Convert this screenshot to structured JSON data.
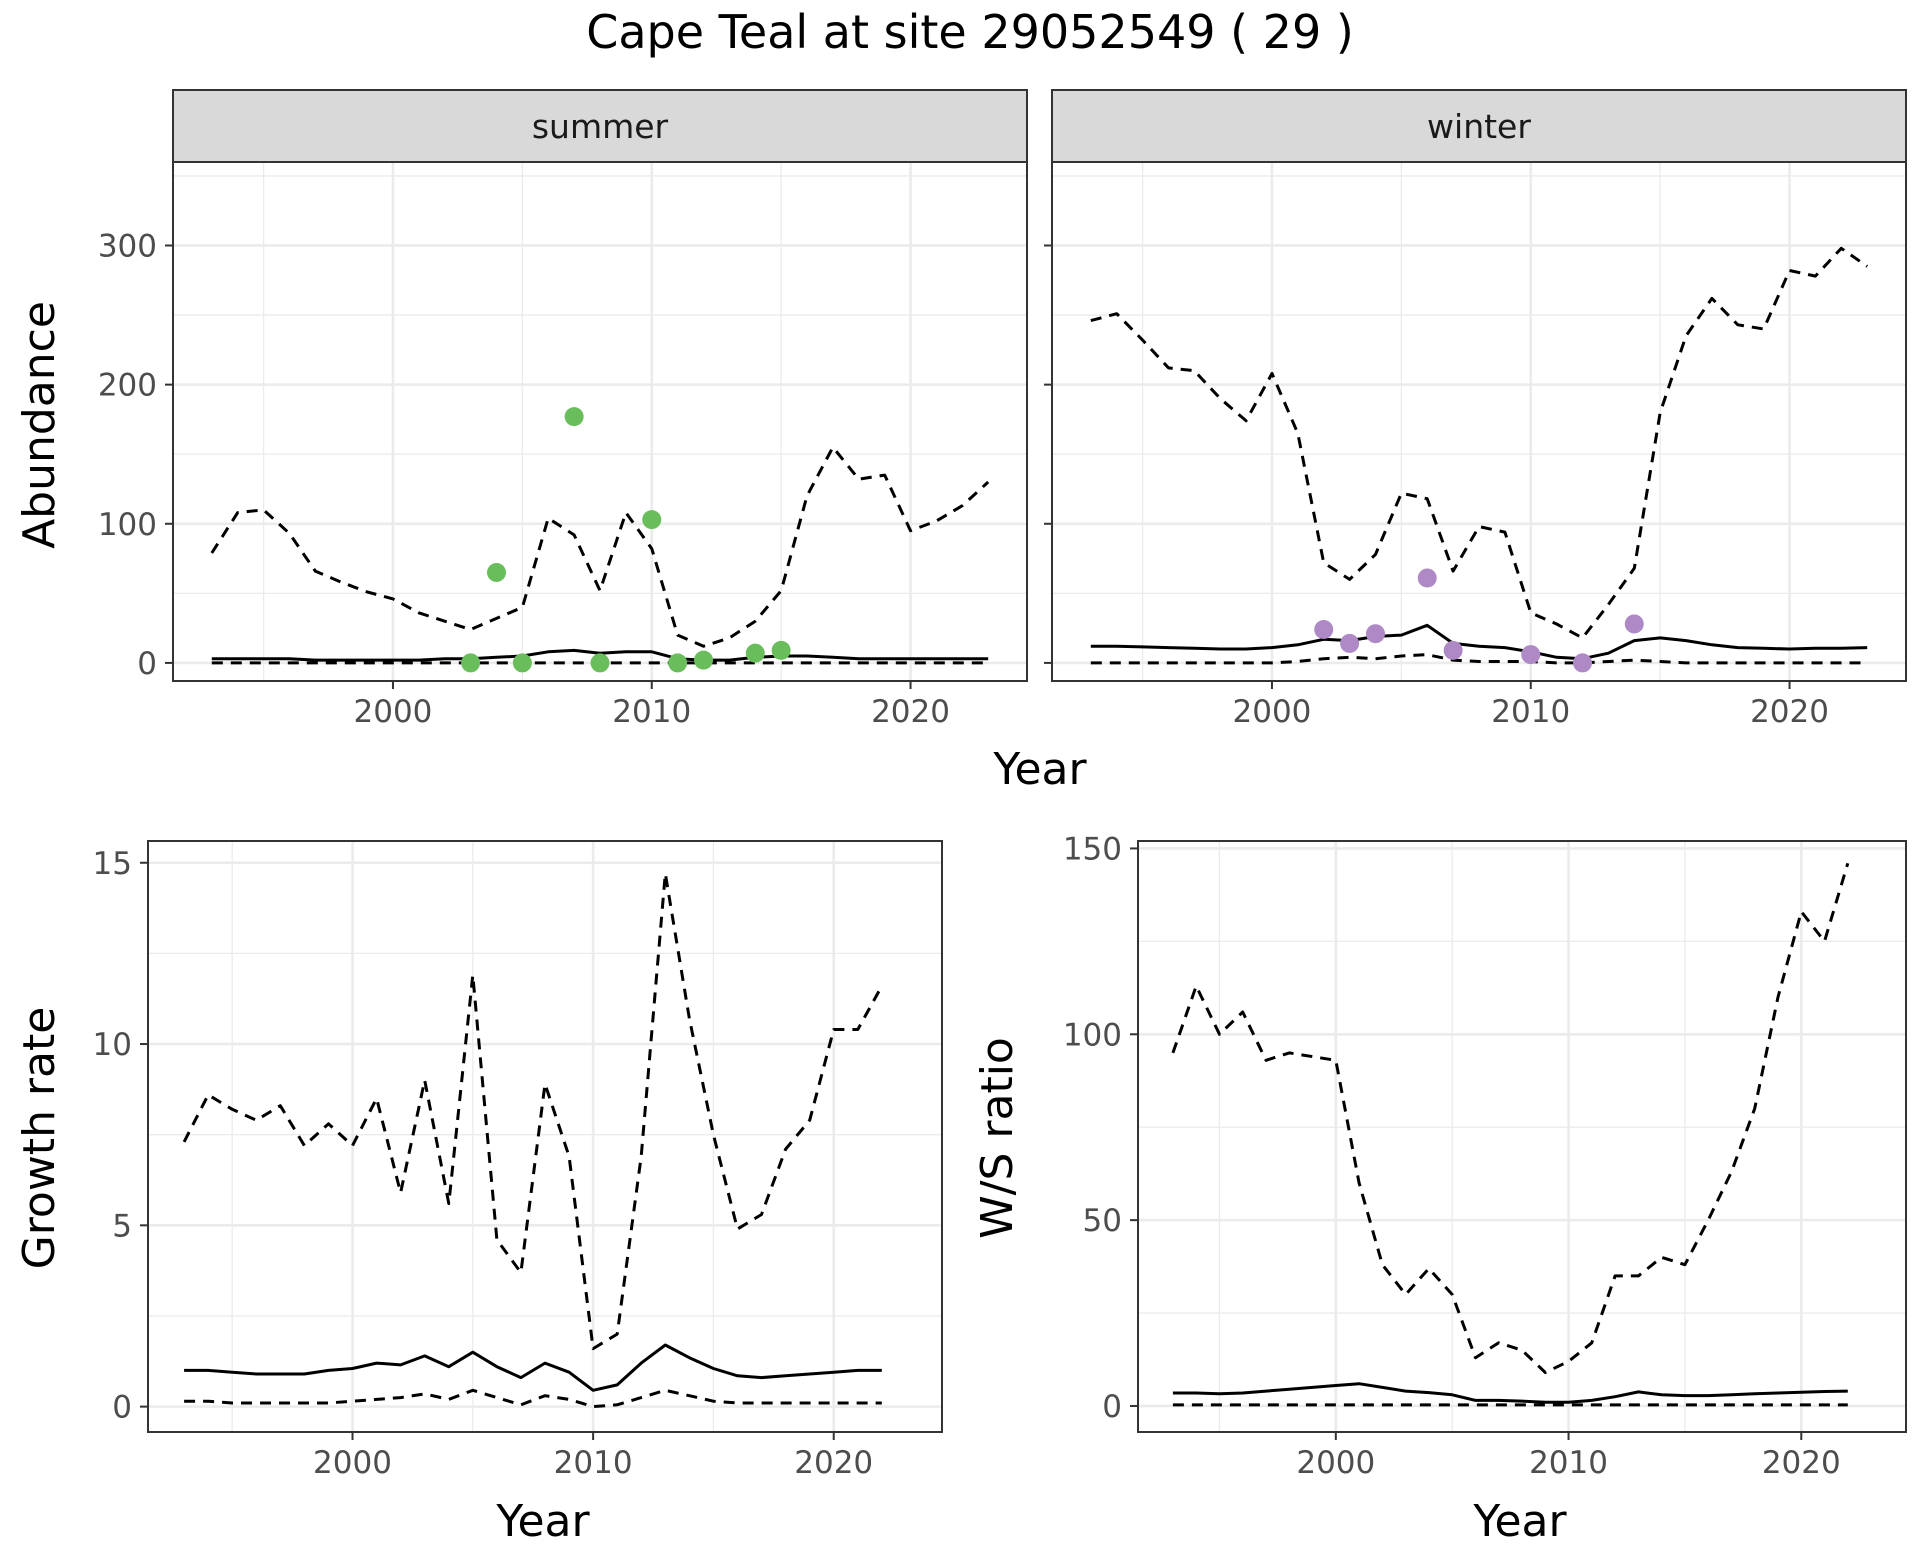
{
  "figure": {
    "title": "Cape Teal at site 29052549 ( 29 )",
    "colors": {
      "summer_points": "#6ABD5B",
      "winter_points": "#AF89C6",
      "lines": "#000000",
      "strip_bg": "#D9D9D9",
      "grid": "#EBEBEB"
    }
  },
  "chart_data": [
    {
      "type": "line",
      "panel": "summer",
      "strip": "summer",
      "xlabel": "Year",
      "ylabel": "Abundance",
      "xlim": [
        1991.5,
        2024.5
      ],
      "ylim": [
        -13,
        360
      ],
      "xticks": [
        2000,
        2010,
        2020
      ],
      "yticks": [
        0,
        100,
        200,
        300
      ],
      "grid": true,
      "series": [
        {
          "style": "dashed",
          "x": [
            1993,
            1994,
            1995,
            1996,
            1997,
            1998,
            1999,
            2000,
            2001,
            2002,
            2003,
            2004,
            2005,
            2006,
            2007,
            2008,
            2009,
            2010,
            2011,
            2012,
            2013,
            2014,
            2015,
            2016,
            2017,
            2018,
            2019,
            2020,
            2021,
            2022,
            2023
          ],
          "values": [
            79,
            108,
            110,
            93,
            66,
            58,
            51,
            46,
            36,
            30,
            24,
            32,
            40,
            104,
            92,
            52,
            108,
            82,
            20,
            12,
            18,
            30,
            52,
            120,
            155,
            132,
            135,
            95,
            102,
            113,
            130
          ]
        },
        {
          "style": "solid",
          "x": [
            1993,
            1994,
            1995,
            1996,
            1997,
            1998,
            1999,
            2000,
            2001,
            2002,
            2003,
            2004,
            2005,
            2006,
            2007,
            2008,
            2009,
            2010,
            2011,
            2012,
            2013,
            2014,
            2015,
            2016,
            2017,
            2018,
            2019,
            2020,
            2021,
            2022,
            2023
          ],
          "values": [
            3,
            3,
            3,
            3,
            2,
            2,
            2,
            2,
            2,
            3,
            3,
            4,
            5,
            8,
            9,
            7,
            8,
            8,
            3,
            2,
            2,
            4,
            5,
            5,
            4,
            3,
            3,
            3,
            3,
            3,
            3
          ]
        },
        {
          "style": "dashed",
          "x": [
            1993,
            2000,
            2003,
            2004,
            2005,
            2006,
            2007,
            2008,
            2009,
            2010,
            2011,
            2012,
            2013,
            2014,
            2015,
            2016,
            2017,
            2018,
            2019,
            2020,
            2021,
            2022,
            2023
          ],
          "values": [
            0,
            0,
            0,
            0,
            0,
            0,
            0,
            0,
            0,
            0,
            0,
            0,
            0,
            0,
            0,
            0,
            0,
            0,
            0,
            0,
            0,
            0,
            0
          ]
        }
      ],
      "points": {
        "x": [
          2003,
          2004,
          2005,
          2007,
          2008,
          2010,
          2011,
          2012,
          2014,
          2015
        ],
        "values": [
          0,
          65,
          0,
          177,
          0,
          103,
          0,
          2,
          7,
          9
        ]
      }
    },
    {
      "type": "line",
      "panel": "winter",
      "strip": "winter",
      "xlabel": "Year",
      "ylabel": "Abundance",
      "xlim": [
        1991.5,
        2024.5
      ],
      "ylim": [
        -13,
        360
      ],
      "xticks": [
        2000,
        2010,
        2020
      ],
      "yticks": [
        0,
        100,
        200,
        300
      ],
      "grid": true,
      "series": [
        {
          "style": "dashed",
          "x": [
            1993,
            1994,
            1995,
            1996,
            1997,
            1998,
            1999,
            2000,
            2001,
            2002,
            2003,
            2004,
            2005,
            2006,
            2007,
            2008,
            2009,
            2010,
            2011,
            2012,
            2013,
            2014,
            2015,
            2016,
            2017,
            2018,
            2019,
            2020,
            2021,
            2022,
            2023
          ],
          "values": [
            246,
            251,
            232,
            212,
            210,
            190,
            174,
            208,
            165,
            72,
            60,
            78,
            122,
            118,
            66,
            98,
            94,
            36,
            28,
            18,
            42,
            68,
            180,
            235,
            262,
            243,
            240,
            282,
            278,
            298,
            285
          ]
        },
        {
          "style": "solid",
          "x": [
            1993,
            1994,
            1995,
            1996,
            1997,
            1998,
            1999,
            2000,
            2001,
            2002,
            2003,
            2004,
            2005,
            2006,
            2007,
            2008,
            2009,
            2010,
            2011,
            2012,
            2013,
            2014,
            2015,
            2016,
            2017,
            2018,
            2019,
            2020,
            2021,
            2022,
            2023
          ],
          "values": [
            12,
            12,
            11.5,
            11,
            10.5,
            10,
            10,
            11,
            13,
            17,
            16,
            19,
            20,
            27,
            14,
            12,
            11,
            8,
            4,
            3,
            7,
            16,
            18,
            16,
            13,
            11,
            10.5,
            10,
            10.5,
            10.5,
            11
          ]
        },
        {
          "style": "dashed",
          "x": [
            1993,
            2000,
            2001,
            2002,
            2003,
            2004,
            2005,
            2006,
            2007,
            2008,
            2009,
            2010,
            2011,
            2012,
            2013,
            2014,
            2015,
            2016,
            2017,
            2018,
            2019,
            2020,
            2021,
            2022,
            2023
          ],
          "values": [
            0,
            0,
            1,
            3,
            4,
            3,
            5,
            6,
            2,
            1,
            1,
            1,
            0,
            0,
            1,
            2,
            1,
            0,
            0,
            0,
            0,
            0,
            0,
            0,
            0
          ]
        }
      ],
      "points": {
        "x": [
          2002,
          2003,
          2004,
          2006,
          2007,
          2010,
          2012,
          2014
        ],
        "values": [
          24,
          14,
          21,
          61,
          9,
          6,
          0,
          28
        ]
      }
    },
    {
      "type": "line",
      "panel": "growth",
      "xlabel": "Year",
      "ylabel": "Growth rate",
      "xlim": [
        1991.5,
        2024.5
      ],
      "ylim": [
        -0.7,
        15.6
      ],
      "xticks": [
        2000,
        2010,
        2020
      ],
      "yticks": [
        0,
        5,
        10,
        15
      ],
      "grid": true,
      "series": [
        {
          "style": "dashed",
          "x": [
            1993,
            1994,
            1995,
            1996,
            1997,
            1998,
            1999,
            2000,
            2001,
            2002,
            2003,
            2004,
            2005,
            2006,
            2007,
            2008,
            2009,
            2010,
            2011,
            2012,
            2013,
            2014,
            2015,
            2016,
            2017,
            2018,
            2019,
            2020,
            2021,
            2022
          ],
          "values": [
            7.3,
            8.6,
            8.2,
            7.9,
            8.3,
            7.2,
            7.8,
            7.2,
            8.5,
            5.9,
            9.0,
            5.6,
            11.9,
            4.6,
            3.7,
            8.9,
            6.9,
            1.6,
            2.0,
            6.9,
            14.7,
            10.7,
            7.5,
            4.9,
            5.3,
            7.1,
            7.9,
            10.4,
            10.4,
            11.6
          ]
        },
        {
          "style": "solid",
          "x": [
            1993,
            1994,
            1995,
            1996,
            1997,
            1998,
            1999,
            2000,
            2001,
            2002,
            2003,
            2004,
            2005,
            2006,
            2007,
            2008,
            2009,
            2010,
            2011,
            2012,
            2013,
            2014,
            2015,
            2016,
            2017,
            2018,
            2019,
            2020,
            2021,
            2022
          ],
          "values": [
            1.0,
            1.0,
            0.95,
            0.9,
            0.9,
            0.9,
            1.0,
            1.05,
            1.2,
            1.15,
            1.4,
            1.1,
            1.5,
            1.1,
            0.8,
            1.2,
            0.95,
            0.45,
            0.6,
            1.2,
            1.7,
            1.35,
            1.05,
            0.85,
            0.8,
            0.85,
            0.9,
            0.95,
            1.0,
            1.0
          ]
        },
        {
          "style": "dashed",
          "x": [
            1993,
            1994,
            1995,
            1996,
            1997,
            1998,
            1999,
            2000,
            2001,
            2002,
            2003,
            2004,
            2005,
            2006,
            2007,
            2008,
            2009,
            2010,
            2011,
            2012,
            2013,
            2014,
            2015,
            2016,
            2017,
            2018,
            2019,
            2020,
            2021,
            2022
          ],
          "values": [
            0.15,
            0.15,
            0.1,
            0.1,
            0.1,
            0.1,
            0.1,
            0.15,
            0.2,
            0.25,
            0.35,
            0.2,
            0.45,
            0.25,
            0.05,
            0.3,
            0.2,
            0.0,
            0.05,
            0.25,
            0.45,
            0.3,
            0.15,
            0.1,
            0.1,
            0.1,
            0.1,
            0.1,
            0.1,
            0.1
          ]
        }
      ]
    },
    {
      "type": "line",
      "panel": "ratio",
      "xlabel": "Year",
      "ylabel": "W/S ratio",
      "xlim": [
        1991.5,
        2024.5
      ],
      "ylim": [
        -7,
        152
      ],
      "xticks": [
        2000,
        2010,
        2020
      ],
      "yticks": [
        0,
        50,
        100,
        150
      ],
      "grid": true,
      "series": [
        {
          "style": "dashed",
          "x": [
            1993,
            1994,
            1995,
            1996,
            1997,
            1998,
            1999,
            2000,
            2001,
            2002,
            2003,
            2004,
            2005,
            2006,
            2007,
            2008,
            2009,
            2010,
            2011,
            2012,
            2013,
            2014,
            2015,
            2016,
            2017,
            2018,
            2019,
            2020,
            2021,
            2022
          ],
          "values": [
            95,
            113,
            100,
            106,
            93,
            95,
            94,
            93,
            60,
            38,
            30,
            37,
            30,
            13,
            17,
            15,
            9,
            12,
            17,
            35,
            35,
            40,
            38,
            50,
            63,
            80,
            110,
            133,
            125,
            146
          ]
        },
        {
          "style": "solid",
          "x": [
            1993,
            1994,
            1995,
            1996,
            1997,
            1998,
            1999,
            2000,
            2001,
            2002,
            2003,
            2004,
            2005,
            2006,
            2007,
            2008,
            2009,
            2010,
            2011,
            2012,
            2013,
            2014,
            2015,
            2016,
            2017,
            2018,
            2019,
            2020,
            2021,
            2022
          ],
          "values": [
            3.5,
            3.5,
            3.3,
            3.5,
            4,
            4.5,
            5,
            5.5,
            6,
            5,
            4,
            3.6,
            3,
            1.5,
            1.5,
            1.3,
            1,
            1,
            1.5,
            2.5,
            3.8,
            3,
            2.8,
            2.8,
            3,
            3.3,
            3.5,
            3.7,
            3.9,
            4
          ]
        },
        {
          "style": "dashed",
          "x": [
            1993,
            1994,
            1995,
            1996,
            1997,
            1998,
            1999,
            2000,
            2001,
            2002,
            2003,
            2004,
            2005,
            2006,
            2007,
            2008,
            2009,
            2010,
            2011,
            2012,
            2013,
            2014,
            2015,
            2016,
            2017,
            2018,
            2019,
            2020,
            2021,
            2022
          ],
          "values": [
            0.3,
            0.3,
            0.3,
            0.3,
            0.3,
            0.3,
            0.3,
            0.3,
            0.3,
            0.3,
            0.3,
            0.3,
            0.3,
            0.3,
            0.3,
            0.3,
            0.3,
            0.3,
            0.3,
            0.3,
            0.3,
            0.3,
            0.3,
            0.3,
            0.3,
            0.3,
            0.3,
            0.3,
            0.3,
            0.3
          ]
        }
      ]
    }
  ]
}
